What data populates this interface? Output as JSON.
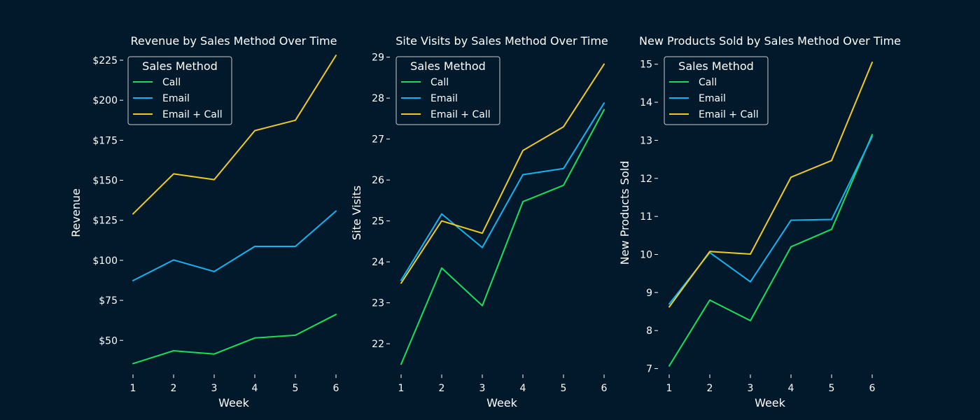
{
  "colors": {
    "background": "#02182b",
    "text": "#ffffff",
    "call": "#16e05b",
    "email": "#14b4f0",
    "email_call": "#f0cc1e"
  },
  "legend_title": "Sales Method",
  "chart_data": [
    {
      "type": "line",
      "title": "Revenue by Sales Method Over Time",
      "xlabel": "Week",
      "ylabel": "Revenue",
      "x": [
        1,
        2,
        3,
        4,
        5,
        6
      ],
      "xticks": [
        "1",
        "2",
        "3",
        "4",
        "5",
        "6"
      ],
      "ylim": [
        30,
        232
      ],
      "yticks": [
        50,
        75,
        100,
        125,
        150,
        175,
        200,
        225
      ],
      "ytick_labels": [
        "$50",
        "$75",
        "$100",
        "$125",
        "$150",
        "$175",
        "$200",
        "$225"
      ],
      "grid": false,
      "legend_placement": "top-left",
      "series": [
        {
          "name": "Call",
          "color_key": "call",
          "values": [
            35.5,
            43.5,
            41.5,
            51.5,
            53.2,
            66.2
          ]
        },
        {
          "name": "Email",
          "color_key": "email",
          "values": [
            87.3,
            100.2,
            93.0,
            108.7,
            108.7,
            130.8
          ]
        },
        {
          "name": "Email + Call",
          "color_key": "email_call",
          "values": [
            129.0,
            154.0,
            150.4,
            181.0,
            187.5,
            228.0
          ]
        }
      ]
    },
    {
      "type": "line",
      "title": "Site Visits by Sales Method Over Time",
      "xlabel": "Week",
      "ylabel": "Site Visits",
      "x": [
        1,
        2,
        3,
        4,
        5,
        6
      ],
      "xticks": [
        "1",
        "2",
        "3",
        "4",
        "5",
        "6"
      ],
      "ylim": [
        21.3,
        29.2
      ],
      "yticks": [
        22,
        23,
        24,
        25,
        26,
        27,
        28,
        29
      ],
      "ytick_labels": [
        "22",
        "23",
        "24",
        "25",
        "26",
        "27",
        "28",
        "29"
      ],
      "grid": false,
      "legend_placement": "top-left",
      "series": [
        {
          "name": "Call",
          "color_key": "call",
          "values": [
            21.5,
            23.85,
            22.93,
            25.47,
            25.87,
            27.72
          ]
        },
        {
          "name": "Email",
          "color_key": "email",
          "values": [
            23.55,
            25.17,
            24.35,
            26.13,
            26.28,
            27.88
          ]
        },
        {
          "name": "Email + Call",
          "color_key": "email_call",
          "values": [
            23.48,
            25.0,
            24.7,
            26.72,
            27.3,
            28.83
          ]
        }
      ]
    },
    {
      "type": "line",
      "title": "New Products Sold by Sales Method Over Time",
      "xlabel": "Week",
      "ylabel": "New Products Sold",
      "x": [
        1,
        2,
        3,
        4,
        5,
        6
      ],
      "xticks": [
        "1",
        "2",
        "3",
        "4",
        "5",
        "6"
      ],
      "ylim": [
        6.9,
        15.4
      ],
      "yticks": [
        7,
        8,
        9,
        10,
        11,
        12,
        13,
        14,
        15
      ],
      "ytick_labels": [
        "7",
        "8",
        "9",
        "10",
        "11",
        "12",
        "13",
        "14",
        "15"
      ],
      "grid": false,
      "legend_placement": "top-left",
      "series": [
        {
          "name": "Call",
          "color_key": "call",
          "values": [
            7.07,
            8.8,
            8.26,
            10.2,
            10.66,
            13.15
          ]
        },
        {
          "name": "Email",
          "color_key": "email",
          "values": [
            8.7,
            10.05,
            9.28,
            10.9,
            10.92,
            13.1
          ]
        },
        {
          "name": "Email + Call",
          "color_key": "email_call",
          "values": [
            8.62,
            10.08,
            10.01,
            12.03,
            12.47,
            15.05
          ]
        }
      ]
    }
  ]
}
